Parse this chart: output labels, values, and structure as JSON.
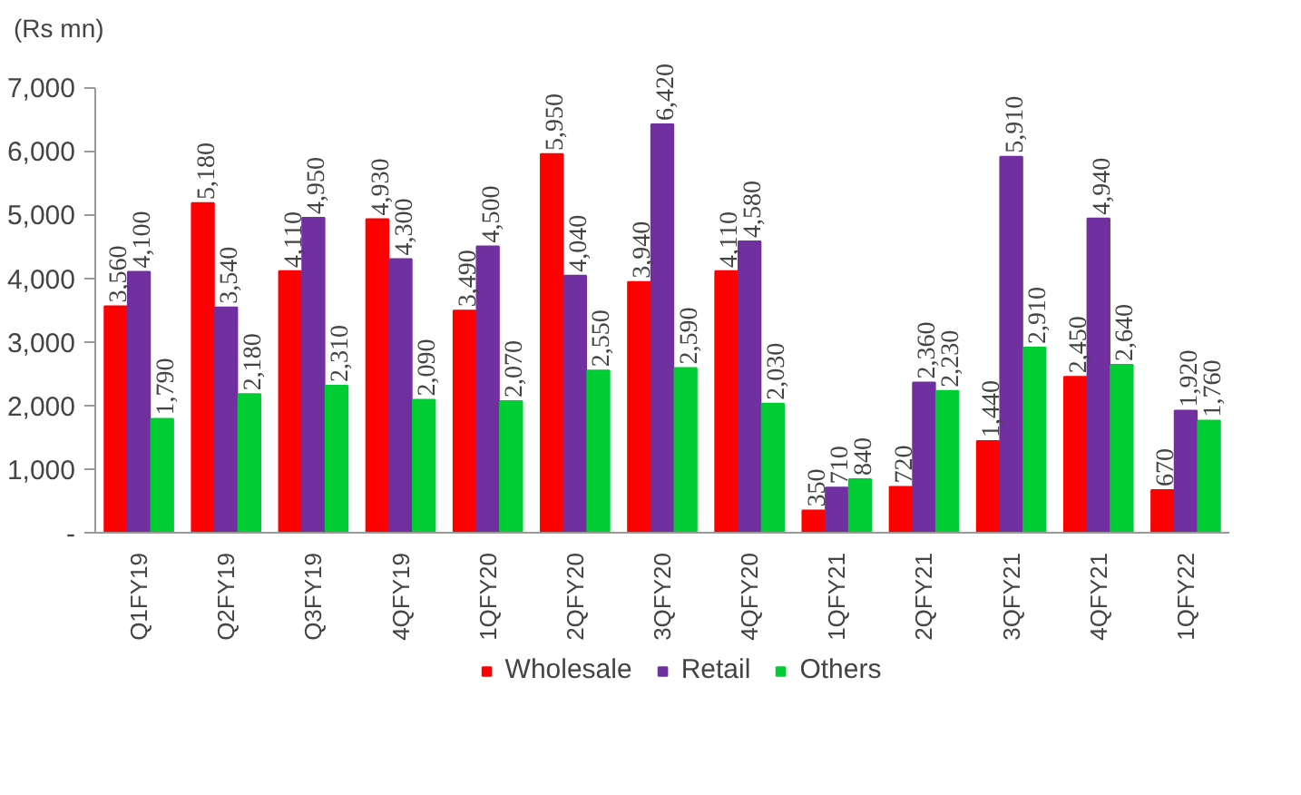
{
  "chart_data": {
    "type": "bar",
    "ylabel": "(Rs mn)",
    "categories": [
      "Q1FY19",
      "Q2FY19",
      "Q3FY19",
      "4QFY19",
      "1QFY20",
      "2QFY20",
      "3QFY20",
      "4QFY20",
      "1QFY21",
      "2QFY21",
      "3QFY21",
      "4QFY21",
      "1QFY22"
    ],
    "series": [
      {
        "name": "Wholesale",
        "color": "#ff0000",
        "values": [
          3560,
          5180,
          4110,
          4930,
          3490,
          5950,
          3940,
          4110,
          350,
          720,
          1440,
          2450,
          670
        ],
        "value_labels": [
          "3,560",
          "5,180",
          "4,110",
          "4,930",
          "3,490",
          "5,950",
          "3,940",
          "4,110",
          "350",
          "720",
          "1,440",
          "2,450",
          "670"
        ]
      },
      {
        "name": "Retail",
        "color": "#7030a0",
        "values": [
          4100,
          3540,
          4950,
          4300,
          4500,
          4040,
          6420,
          4580,
          710,
          2360,
          5910,
          4940,
          1920
        ],
        "value_labels": [
          "4,100",
          "3,540",
          "4,950",
          "4,300",
          "4,500",
          "4,040",
          "6,420",
          "4,580",
          "710",
          "2,360",
          "5,910",
          "4,940",
          "1,920"
        ]
      },
      {
        "name": "Others",
        "color": "#00cc33",
        "values": [
          1790,
          2180,
          2310,
          2090,
          2070,
          2550,
          2590,
          2030,
          840,
          2230,
          2910,
          2640,
          1760
        ],
        "value_labels": [
          "1,790",
          "2,180",
          "2,310",
          "2,090",
          "2,070",
          "2,550",
          "2,590",
          "2,030",
          "840",
          "2,230",
          "2,910",
          "2,640",
          "1,760"
        ]
      }
    ],
    "ylim": [
      0,
      7000
    ],
    "yticks": [
      {
        "value": 0,
        "label": "-"
      },
      {
        "value": 1000,
        "label": "1,000"
      },
      {
        "value": 2000,
        "label": "2,000"
      },
      {
        "value": 3000,
        "label": "3,000"
      },
      {
        "value": 4000,
        "label": "4,000"
      },
      {
        "value": 5000,
        "label": "5,000"
      },
      {
        "value": 6000,
        "label": "6,000"
      },
      {
        "value": 7000,
        "label": "7,000"
      }
    ],
    "grid": false,
    "legend": "bottom"
  }
}
